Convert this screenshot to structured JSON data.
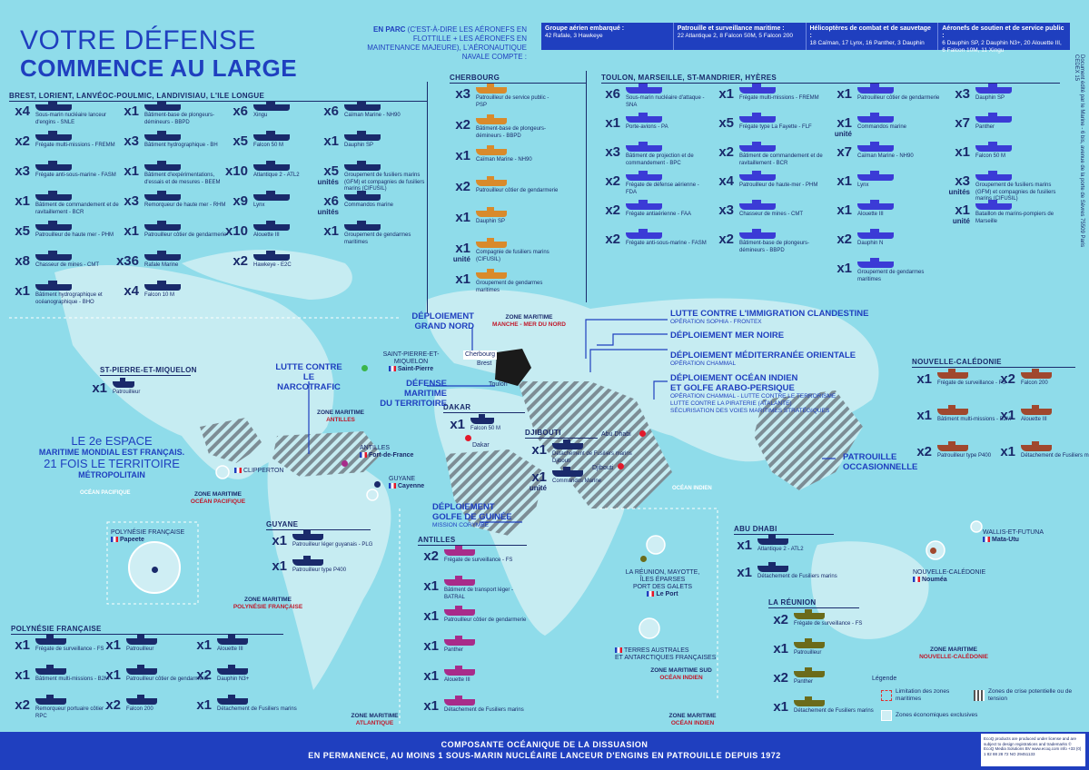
{
  "header": {
    "title_line1": "VOTRE DÉFENSE",
    "title_line2": "COMMENCE AU LARGE",
    "parc_label_bold": "EN PARC",
    "parc_label_text": "(C'EST-À-DIRE LES AÉRONEFS EN FLOTTILLE + LES AÉRONEFS EN MAINTENANCE MAJEURE), L'AÉRONAUTIQUE NAVALE COMPTE :",
    "fleet_cells": [
      {
        "title": "Groupe aérien embarqué :",
        "text": "42 Rafale, 3 Hawkeye"
      },
      {
        "title": "Patrouille et surveillance maritime :",
        "text": "22 Atlantique 2, 8 Falcon 50M, 5 Falcon 200"
      },
      {
        "title": "Hélicoptères de combat et de sauvetage :",
        "text": "18 Caïman, 17 Lynx, 16 Panther, 3 Dauphin"
      },
      {
        "title": "Aéronefs de soutien et de service public :",
        "text": "6 Dauphin SP, 2 Dauphin N3+, 20 Alouette III, 6 Falcon 10M, 11 Xingu"
      }
    ],
    "side_note": "Document édité par le Marine - 6 bis, avenue de la porte de Sèvres 75509 Paris CEDEX 15"
  },
  "colors": {
    "brest": "#1a2a6b",
    "cherbourg": "#d98a2b",
    "toulon": "#3b3bd6",
    "noumea": "#a0482e",
    "antilles": "#a82b8a",
    "reunion": "#6b6b1a",
    "accent": "#1f3fbf"
  },
  "brest": {
    "title": "BREST, LORIENT, LANVÉOC-POULMIC, LANDIVISIAU, L'ILE LONGUE",
    "col1": [
      {
        "qty": "x4",
        "label": "Sous-marin nucléaire lanceur d'engins - SNLE"
      },
      {
        "qty": "x2",
        "label": "Frégate multi-missions - FREMM"
      },
      {
        "qty": "x3",
        "label": "Frégate anti-sous-marine - FASM"
      },
      {
        "qty": "x1",
        "label": "Bâtiment de commandement et de ravitaillement - BCR"
      },
      {
        "qty": "x5",
        "label": "Patrouilleur de haute mer - PHM"
      },
      {
        "qty": "x8",
        "label": "Chasseur de mines - CMT"
      },
      {
        "qty": "x1",
        "label": "Bâtiment hydrographique et océanographique - BHO"
      }
    ],
    "col2": [
      {
        "qty": "x1",
        "label": "Bâtiment-base de plongeurs-démineurs - BBPD"
      },
      {
        "qty": "x3",
        "label": "Bâtiment hydrographique - BH"
      },
      {
        "qty": "x1",
        "label": "Bâtiment d'expérimentations, d'essais et de mesures - BEEM"
      },
      {
        "qty": "x3",
        "label": "Remorqueur de haute mer - RHM"
      },
      {
        "qty": "x1",
        "label": "Patrouilleur côtier de gendarmerie"
      },
      {
        "qty": "x36",
        "label": "Rafale Marine"
      },
      {
        "qty": "x4",
        "label": "Falcon 10 M"
      }
    ],
    "col3": [
      {
        "qty": "x6",
        "label": "Xingu"
      },
      {
        "qty": "x5",
        "label": "Falcon 50 M"
      },
      {
        "qty": "x10",
        "label": "Atlantique 2 - ATL2"
      },
      {
        "qty": "x9",
        "label": "Lynx"
      },
      {
        "qty": "x10",
        "label": "Alouette III"
      },
      {
        "qty": "x2",
        "label": "Hawkeye - E2C"
      }
    ],
    "col4": [
      {
        "qty": "x6",
        "label": "Caïman Marine - NH90"
      },
      {
        "qty": "x1",
        "label": "Dauphin SP"
      },
      {
        "qty": "x5",
        "sub": "unités",
        "label": "Groupement de fusiliers marins (GFM) et compagnies de fusiliers marins (CIFUSIL)"
      },
      {
        "qty": "x6",
        "sub": "unités",
        "label": "Commandos marine"
      },
      {
        "qty": "x1",
        "label": "Groupement de gendarmes maritimes"
      }
    ]
  },
  "cherbourg": {
    "title": "CHERBOURG",
    "items": [
      {
        "qty": "x3",
        "label": "Patrouilleur de service public - PSP"
      },
      {
        "qty": "x2",
        "label": "Bâtiment-base de plongeurs-démineurs - BBPD"
      },
      {
        "qty": "x1",
        "label": "Caïman Marine - NH90"
      },
      {
        "qty": "x2",
        "label": "Patrouilleur côtier de gendarmerie"
      },
      {
        "qty": "x1",
        "label": "Dauphin SP"
      },
      {
        "qty": "x1",
        "sub": "unité",
        "label": "Compagnie de fusiliers marins (CIFUSIL)"
      },
      {
        "qty": "x1",
        "label": "Groupement de gendarmes maritimes"
      }
    ]
  },
  "toulon": {
    "title": "TOULON, MARSEILLE, ST-MANDRIER, HYÈRES",
    "col1": [
      {
        "qty": "x6",
        "label": "Sous-marin nucléaire d'attaque - SNA"
      },
      {
        "qty": "x1",
        "label": "Porte-avions - PA"
      },
      {
        "qty": "x3",
        "label": "Bâtiment de projection et de commandement - BPC"
      },
      {
        "qty": "x2",
        "label": "Frégate de défense aérienne - FDA"
      },
      {
        "qty": "x2",
        "label": "Frégate antiaérienne - FAA"
      },
      {
        "qty": "x2",
        "label": "Frégate anti-sous-marine - FASM"
      }
    ],
    "col2": [
      {
        "qty": "x1",
        "label": "Frégate multi-missions - FREMM"
      },
      {
        "qty": "x5",
        "label": "Frégate type La Fayette - FLF"
      },
      {
        "qty": "x2",
        "label": "Bâtiment de commandement et de ravitaillement - BCR"
      },
      {
        "qty": "x4",
        "label": "Patrouilleur de haute-mer - PHM"
      },
      {
        "qty": "x3",
        "label": "Chasseur de mines - CMT"
      },
      {
        "qty": "x2",
        "label": "Bâtiment-base de plongeurs-démineurs - BBPD"
      }
    ],
    "col3": [
      {
        "qty": "x1",
        "label": "Patrouilleur côtier de gendarmerie"
      },
      {
        "qty": "x1",
        "sub": "unité",
        "label": "Commandos marine"
      },
      {
        "qty": "x7",
        "label": "Caïman Marine - NH90"
      },
      {
        "qty": "x1",
        "label": "Lynx"
      },
      {
        "qty": "x1",
        "label": "Alouette III"
      },
      {
        "qty": "x2",
        "label": "Dauphin N"
      },
      {
        "qty": "x1",
        "label": "Groupement de gendarmes maritimes"
      }
    ],
    "col4": [
      {
        "qty": "x3",
        "label": "Dauphin SP"
      },
      {
        "qty": "x7",
        "label": "Panther"
      },
      {
        "qty": "x1",
        "label": "Falcon 50 M"
      },
      {
        "qty": "x3",
        "sub": "unités",
        "label": "Groupement de fusiliers marins (GFM) et compagnies de fusiliers marins (CIFUSIL)"
      },
      {
        "qty": "x1",
        "sub": "unité",
        "label": "Bataillon de marins-pompiers de Marseille"
      }
    ]
  },
  "spm": {
    "title": "ST-PIERRE-ET-MIQUELON",
    "qty": "x1",
    "label": "Patrouilleur"
  },
  "guyane": {
    "title": "GUYANE",
    "items": [
      {
        "qty": "x1",
        "label": "Patrouilleur léger guyanais - PLG"
      },
      {
        "qty": "x1",
        "label": "Patrouilleur type P400"
      }
    ]
  },
  "polynesie": {
    "title": "POLYNÉSIE FRANÇAISE",
    "items": [
      {
        "qty": "x1",
        "label": "Frégate de surveillance - FS"
      },
      {
        "qty": "x1",
        "label": "Patrouilleur"
      },
      {
        "qty": "x1",
        "label": "Alouette III"
      },
      {
        "qty": "x1",
        "label": "Bâtiment multi-missions - B2M"
      },
      {
        "qty": "x1",
        "label": "Patrouilleur côtier de gendarmerie"
      },
      {
        "qty": "x2",
        "label": "Dauphin N3+"
      },
      {
        "qty": "x2",
        "label": "Remorqueur portuaire côtier - RPC"
      },
      {
        "qty": "x2",
        "label": "Falcon 200"
      },
      {
        "qty": "x1",
        "label": "Détachement de Fusiliers marins"
      }
    ]
  },
  "antilles": {
    "title": "ANTILLES",
    "items": [
      {
        "qty": "x2",
        "label": "Frégate de surveillance - FS"
      },
      {
        "qty": "x1",
        "label": "Bâtiment de transport léger - BATRAL"
      },
      {
        "qty": "x1",
        "label": "Patrouilleur côtier de gendarmerie"
      },
      {
        "qty": "x1",
        "label": "Panther"
      },
      {
        "qty": "x1",
        "label": "Alouette III"
      },
      {
        "qty": "x1",
        "label": "Détachement de Fusiliers marins"
      }
    ]
  },
  "dakar": {
    "title": "DAKAR",
    "qty": "x1",
    "label": "Falcon 50 M"
  },
  "djibouti": {
    "title": "DJIBOUTI",
    "items": [
      {
        "qty": "x1",
        "label": "Détachement de Fusiliers marins Djibouti"
      },
      {
        "qty": "x1",
        "sub": "unité",
        "label": "Commandos Marine"
      }
    ]
  },
  "abudhabi": {
    "title": "ABU DHABI",
    "items": [
      {
        "qty": "x1",
        "label": "Atlantique 2 - ATL2"
      },
      {
        "qty": "x1",
        "label": "Détachement de Fusiliers marins"
      }
    ]
  },
  "nc": {
    "title": "NOUVELLE-CALÉDONIE",
    "items": [
      {
        "qty": "x1",
        "label": "Frégate de surveillance - FS"
      },
      {
        "qty": "x2",
        "label": "Falcon 200"
      },
      {
        "qty": "x1",
        "label": "Bâtiment multi-missions - B2M"
      },
      {
        "qty": "x1",
        "label": "Alouette III"
      },
      {
        "qty": "x2",
        "label": "Patrouilleur type P400"
      },
      {
        "qty": "x1",
        "label": "Détachement de Fusiliers marins"
      }
    ]
  },
  "reunion": {
    "title": "LA RÉUNION",
    "items": [
      {
        "qty": "x2",
        "label": "Frégate de surveillance - FS"
      },
      {
        "qty": "x1",
        "label": "Patrouilleur"
      },
      {
        "qty": "x2",
        "label": "Panther"
      },
      {
        "qty": "x1",
        "label": "Détachement de Fusiliers marins"
      }
    ]
  },
  "map": {
    "espace_l1": "LE 2e ESPACE",
    "espace_l2": "MARITIME MONDIAL EST FRANÇAIS.",
    "espace_l3": "21 FOIS LE TERRITOIRE",
    "espace_l4": "MÉTROPOLITAIN",
    "ocean_pacifique": "OCÉAN PACIFIQUE",
    "ocean_indien": "OCÉAN INDIEN",
    "zone_maritime": "ZONE MARITIME",
    "zones": {
      "manche": "MANCHE - MER DU NORD",
      "antilles": "ANTILLES",
      "pacifique": "OCÉAN PACIFIQUE",
      "polynesie": "POLYNÉSIE FRANÇAISE",
      "atlantique": "ATLANTIQUE",
      "indien": "OCÉAN INDIEN",
      "indien_sud": "OCÉAN INDIEN",
      "zone_sud": "ZONE MARITIME SUD",
      "nc": "NOUVELLE-CALÉDONIE"
    },
    "ops": {
      "grand_nord_l1": "DÉPLOIEMENT",
      "grand_nord_l2": "GRAND NORD",
      "clandestine": "LUTTE CONTRE L'IMMIGRATION CLANDESTINE",
      "clandestine_sub": "OPÉRATION SOPHIA - FRONTEX",
      "mer_noire": "DÉPLOIEMENT MER NOIRE",
      "med_l1": "DÉPLOIEMENT MÉDITERRANÉE ORIENTALE",
      "med_sub": "OPÉRATION CHAMMAL",
      "oi_l1": "DÉPLOIEMENT OCÉAN INDIEN",
      "oi_l2": "ET GOLFE ARABO-PERSIQUE",
      "oi_sub1": "OPÉRATION CHAMMAL - LUTTE CONTRE LE TERRORISME",
      "oi_sub2": "LUTTE CONTRE LA PIRATERIE (ATALANTE)",
      "oi_sub3": "SÉCURISATION DES VOIES MARITIMES STRATÉGIQUES",
      "narco_l1": "LUTTE CONTRE",
      "narco_l2": "LE NARCOTRAFIC",
      "dmt_l1": "DÉFENSE MARITIME",
      "dmt_l2": "DU TERRITOIRE",
      "guinee_l1": "DÉPLOIEMENT",
      "guinee_l2": "GOLFE DE GUINÉE",
      "guinee_sub": "MISSION CORYMBE",
      "patrouille_l1": "PATROUILLE",
      "patrouille_l2": "OCCASIONNELLE"
    },
    "places": {
      "spm_l1": "SAINT-PIERRE-ET-MIQUELON",
      "spm_l2": "Saint-Pierre",
      "antilles_l1": "ANTILLES",
      "antilles_l2": "Fort-de-France",
      "clipperton": "CLIPPERTON",
      "guyane_l1": "GUYANE",
      "guyane_l2": "Cayenne",
      "polynesie_l1": "POLYNÉSIE FRANÇAISE",
      "polynesie_l2": "Papeete",
      "reunion_l1": "LA RÉUNION, MAYOTTE,",
      "reunion_l2": "ÎLES ÉPARSES",
      "reunion_l3": "PORT DES GALETS",
      "reunion_l4": "Le Port",
      "taaf_l1": "TERRES AUSTRALES",
      "taaf_l2": "ET ANTARCTIQUES FRANÇAISES",
      "wallis_l1": "WALLIS-ET-FUTUNA",
      "wallis_l2": "Mata-Utu",
      "nc_l1": "NOUVELLE-CALÉDONIE",
      "nc_l2": "Nouméa",
      "cherbourg": "Cherbourg",
      "brest": "Brest",
      "toulon": "Toulon",
      "dakar": "Dakar",
      "djibouti": "Djibouti",
      "abudhabi": "Abu Dhabi"
    }
  },
  "legend": {
    "title": "Légende",
    "limit": "Limitation des zones maritimes",
    "crisis": "Zones de crise potentielle ou de tension",
    "eez": "Zones économiques exclusives"
  },
  "footer": {
    "line1": "COMPOSANTE OCÉANIQUE DE LA DISSUASION",
    "line2": "EN PERMANENCE, AU MOINS 1 SOUS-MARIN NUCLÉAIRE LANCEUR D'ENGINS EN PATROUILLE DEPUIS 1972",
    "credit": "EcoQ products are produced under license and are subject to design registrations and trademarks © EcoQ Media Solutions BV www.ecoq.com info +33 (0) 1 82 88 28 72 NO 29451133"
  }
}
